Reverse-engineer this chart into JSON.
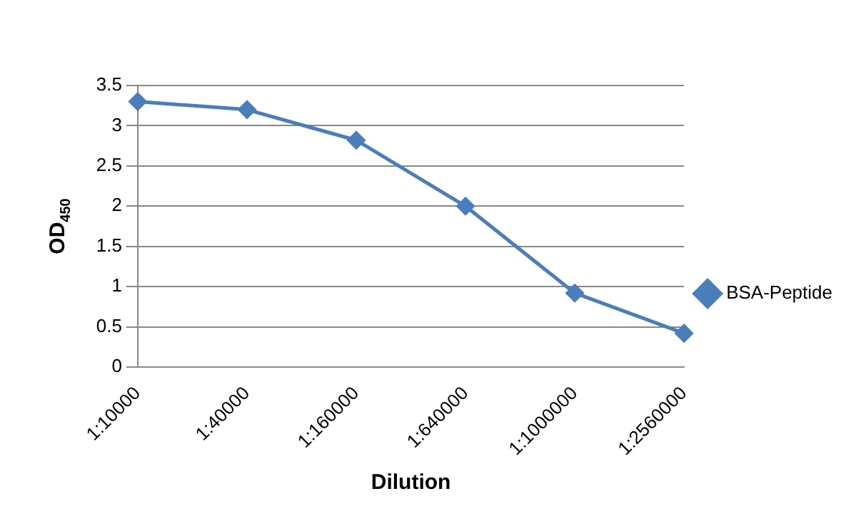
{
  "chart_data": {
    "type": "line",
    "xlabel": "Dilution",
    "ylabel": "OD$_{450}$",
    "categories": [
      "1:10000",
      "1:40000",
      "1:160000",
      "1:640000",
      "1:1000000",
      "1:2560000"
    ],
    "series": [
      {
        "name": "BSA-Peptide",
        "color": "#4a7ebb",
        "values": [
          3.3,
          3.2,
          2.82,
          2.0,
          0.92,
          0.42
        ]
      }
    ],
    "ylim": [
      0,
      3.5
    ],
    "yticks": [
      0,
      0.5,
      1,
      1.5,
      2,
      2.5,
      3,
      3.5
    ],
    "grid": "y",
    "legend": "right",
    "marker": "diamond",
    "line_style": "solid"
  }
}
